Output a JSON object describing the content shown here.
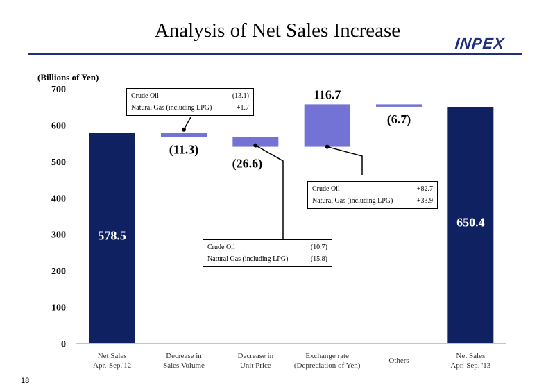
{
  "header": {
    "title": "Analysis of Net Sales Increase",
    "logo_text": "INPEX",
    "page_number": "18"
  },
  "colors": {
    "total_bar": "#0f2161",
    "change_bar": "#7373d6",
    "accent": "#1f2f7a"
  },
  "chart_data": {
    "type": "bar",
    "subtype": "waterfall",
    "unit_label": "(Billions of Yen)",
    "ylim": [
      0,
      700
    ],
    "yticks": [
      "0",
      "100",
      "200",
      "300",
      "400",
      "500",
      "600",
      "700"
    ],
    "grid": false,
    "categories": [
      "Net Sales\nApr.-Sep.'12",
      "Decrease  in\nSales Volume",
      "Decrease  in\nUnit Price",
      "Exchange rate\n(Depreciation of Yen)",
      "Others",
      "Net Sales\nApr.-Sep. '13"
    ],
    "bars": [
      {
        "kind": "total",
        "start": 0,
        "end": 578.5,
        "label": "578.5"
      },
      {
        "kind": "change",
        "start": 578.5,
        "end": 567.2,
        "label": "(11.3)"
      },
      {
        "kind": "change",
        "start": 567.2,
        "end": 540.6,
        "label": "(26.6)"
      },
      {
        "kind": "change",
        "start": 540.6,
        "end": 657.3,
        "label": "116.7"
      },
      {
        "kind": "change",
        "start": 657.3,
        "end": 650.6,
        "label": "(6.7)"
      },
      {
        "kind": "total",
        "start": 0,
        "end": 650.4,
        "label": "650.4"
      }
    ],
    "callouts": [
      {
        "bar": 1,
        "rows": [
          {
            "name": "Crude  Oil",
            "value": "(13.1)"
          },
          {
            "name": "Natural  Gas  (including  LPG)",
            "value": "+1.7"
          }
        ]
      },
      {
        "bar": 2,
        "rows": [
          {
            "name": "Crude  Oil",
            "value": "(10.7)"
          },
          {
            "name": "Natural  Gas  (including  LPG)",
            "value": "(15.8)"
          }
        ]
      },
      {
        "bar": 3,
        "rows": [
          {
            "name": "Crude  Oil",
            "value": "+82.7"
          },
          {
            "name": "Natural  Gas  (including  LPG)",
            "value": "+33.9"
          }
        ]
      }
    ]
  }
}
